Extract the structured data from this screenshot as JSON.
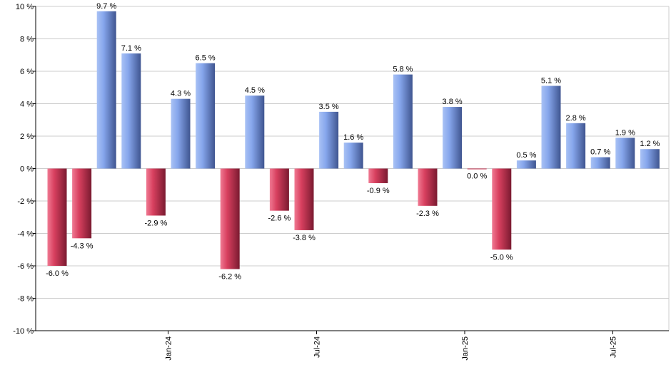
{
  "chart_data": {
    "type": "bar",
    "title": "",
    "xlabel": "",
    "ylabel": "",
    "ylim": [
      -10,
      10
    ],
    "y_ticks": [
      10,
      8,
      6,
      4,
      2,
      0,
      -2,
      -4,
      -6,
      -8,
      -10
    ],
    "y_tick_labels": [
      "10 %",
      "8 %",
      "6 %",
      "4 %",
      "2 %",
      "0 %",
      "-2 %",
      "-4 %",
      "-6 %",
      "-8 %",
      "-10 %"
    ],
    "grid": true,
    "values": [
      -6.0,
      -4.3,
      9.7,
      7.1,
      -2.9,
      4.3,
      6.5,
      -6.2,
      4.5,
      -2.6,
      -3.8,
      3.5,
      1.6,
      -0.9,
      5.8,
      -2.3,
      3.8,
      0.0,
      -5.0,
      0.5,
      5.1,
      2.8,
      0.7,
      1.9,
      1.2
    ],
    "value_labels": [
      "-6.0 %",
      "-4.3 %",
      "9.7 %",
      "7.1 %",
      "-2.9 %",
      "4.3 %",
      "6.5 %",
      "-6.2 %",
      "4.5 %",
      "-2.6 %",
      "-3.8 %",
      "3.5 %",
      "1.6 %",
      "-0.9 %",
      "5.8 %",
      "-2.3 %",
      "3.8 %",
      "0.0 %",
      "-5.0 %",
      "0.5 %",
      "5.1 %",
      "2.8 %",
      "0.7 %",
      "1.9 %",
      "1.2 %"
    ],
    "x_tick_labels": [
      {
        "label": "Jan-24",
        "after_bar_index": 4
      },
      {
        "label": "Jul-24",
        "after_bar_index": 10
      },
      {
        "label": "Jan-25",
        "after_bar_index": 16
      },
      {
        "label": "Jul-25",
        "after_bar_index": 22
      }
    ],
    "colors": {
      "positive": "#6f8fdc",
      "negative": "#c8304f",
      "grid": "#cccccc",
      "axis": "#000000"
    }
  }
}
